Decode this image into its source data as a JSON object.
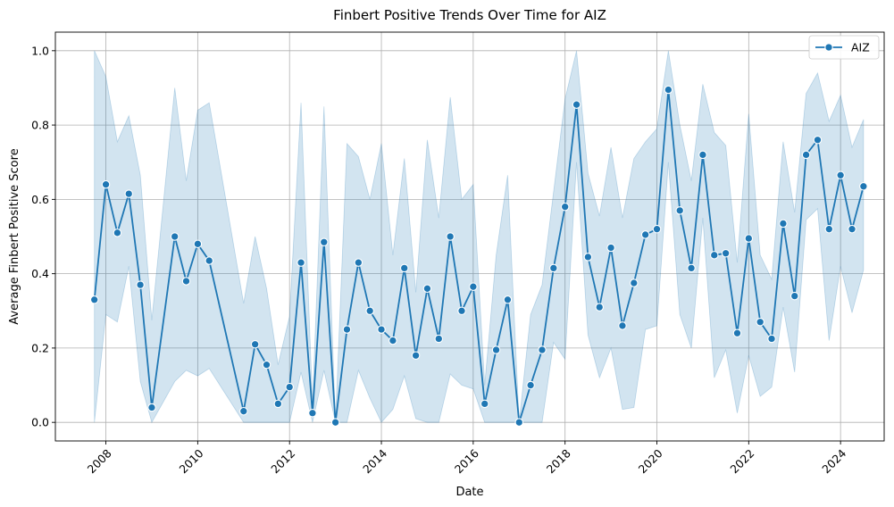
{
  "chart_data": {
    "type": "line",
    "title": "Finbert Positive Trends Over Time for AIZ",
    "xlabel": "Date",
    "ylabel": "Average Finbert Positive Score",
    "xlim": [
      2006.9,
      2024.95
    ],
    "ylim": [
      -0.05,
      1.05
    ],
    "x_ticks": [
      2008,
      2010,
      2012,
      2014,
      2016,
      2018,
      2020,
      2022,
      2024
    ],
    "x_tick_labels": [
      "2008",
      "2010",
      "2012",
      "2014",
      "2016",
      "2018",
      "2020",
      "2022",
      "2024"
    ],
    "y_ticks": [
      0.0,
      0.2,
      0.4,
      0.6,
      0.8,
      1.0
    ],
    "y_tick_labels": [
      "0.0",
      "0.2",
      "0.4",
      "0.6",
      "0.8",
      "1.0"
    ],
    "grid": true,
    "legend_position": "top-right",
    "series": [
      {
        "name": "AIZ",
        "color": "#1f77b4",
        "x": [
          2007.75,
          2008.0,
          2008.25,
          2008.5,
          2008.75,
          2009.0,
          2009.5,
          2009.75,
          2010.0,
          2010.25,
          2011.0,
          2011.25,
          2011.5,
          2011.75,
          2012.0,
          2012.25,
          2012.5,
          2012.75,
          2013.0,
          2013.25,
          2013.5,
          2013.75,
          2014.0,
          2014.25,
          2014.5,
          2014.75,
          2015.0,
          2015.25,
          2015.5,
          2015.75,
          2016.0,
          2016.25,
          2016.5,
          2016.75,
          2017.0,
          2017.25,
          2017.5,
          2017.75,
          2018.0,
          2018.25,
          2018.5,
          2018.75,
          2019.0,
          2019.25,
          2019.5,
          2019.75,
          2020.0,
          2020.25,
          2020.5,
          2020.75,
          2021.0,
          2021.25,
          2021.5,
          2021.75,
          2022.0,
          2022.25,
          2022.5,
          2022.75,
          2023.0,
          2023.25,
          2023.5,
          2023.75,
          2024.0,
          2024.25,
          2024.5
        ],
        "values": [
          0.33,
          0.64,
          0.51,
          0.615,
          0.37,
          0.04,
          0.5,
          0.38,
          0.48,
          0.435,
          0.03,
          0.21,
          0.155,
          0.05,
          0.095,
          0.43,
          0.025,
          0.485,
          0.0,
          0.25,
          0.43,
          0.3,
          0.25,
          0.22,
          0.415,
          0.18,
          0.36,
          0.225,
          0.5,
          0.3,
          0.365,
          0.05,
          0.195,
          0.33,
          0.0,
          0.1,
          0.195,
          0.415,
          0.58,
          0.855,
          0.445,
          0.31,
          0.47,
          0.26,
          0.375,
          0.505,
          0.52,
          0.895,
          0.57,
          0.415,
          0.72,
          0.45,
          0.455,
          0.24,
          0.495,
          0.27,
          0.225,
          0.535,
          0.34,
          0.72,
          0.76,
          0.52,
          0.665,
          0.52,
          0.635
        ],
        "ci_upper": [
          1.0,
          0.93,
          0.755,
          0.825,
          0.665,
          0.275,
          0.9,
          0.65,
          0.84,
          0.86,
          0.32,
          0.5,
          0.36,
          0.155,
          0.285,
          0.86,
          0.05,
          0.85,
          0.0,
          0.75,
          0.715,
          0.6,
          0.75,
          0.45,
          0.71,
          0.35,
          0.76,
          0.55,
          0.875,
          0.6,
          0.64,
          0.1,
          0.45,
          0.665,
          0.0,
          0.29,
          0.37,
          0.62,
          0.87,
          1.0,
          0.67,
          0.555,
          0.74,
          0.55,
          0.71,
          0.755,
          0.79,
          1.0,
          0.8,
          0.65,
          0.91,
          0.78,
          0.745,
          0.43,
          0.83,
          0.45,
          0.385,
          0.755,
          0.565,
          0.885,
          0.94,
          0.81,
          0.88,
          0.74,
          0.815
        ],
        "ci_lower": [
          0.0,
          0.29,
          0.27,
          0.42,
          0.11,
          0.0,
          0.11,
          0.14,
          0.125,
          0.145,
          0.0,
          0.0,
          0.0,
          0.0,
          0.0,
          0.135,
          0.0,
          0.14,
          0.0,
          0.0,
          0.14,
          0.065,
          0.0,
          0.035,
          0.125,
          0.01,
          0.0,
          0.0,
          0.13,
          0.1,
          0.09,
          0.0,
          0.0,
          0.0,
          0.0,
          0.0,
          0.0,
          0.215,
          0.17,
          0.7,
          0.235,
          0.12,
          0.2,
          0.035,
          0.04,
          0.25,
          0.26,
          0.7,
          0.29,
          0.2,
          0.55,
          0.12,
          0.195,
          0.025,
          0.18,
          0.07,
          0.095,
          0.31,
          0.135,
          0.545,
          0.575,
          0.22,
          0.42,
          0.295,
          0.41
        ]
      }
    ]
  }
}
